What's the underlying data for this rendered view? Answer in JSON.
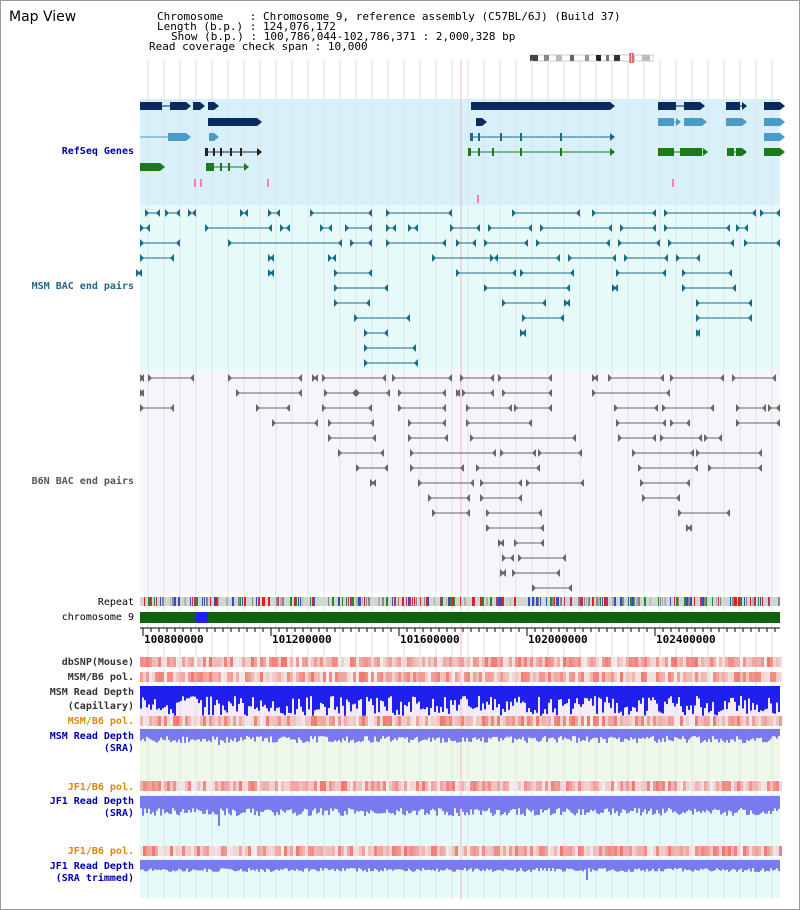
{
  "title": "Map View",
  "info": {
    "chrom_label": "Chromosome",
    "chrom_value": "Chromosome 9, reference assembly (C57BL/6J) (Build 37)",
    "length_label": "Length (b.p.)",
    "length_value": "124,076,172",
    "show_label": "Show (b.p.)",
    "show_value": "100,786,044-102,786,371 : 2,000,328 bp",
    "coverage_label": "Read coverage check span",
    "coverage_value": "10,000"
  },
  "tracks": {
    "refseq": "RefSeq Genes",
    "msm_bac": "MSM BAC end pairs",
    "b6n_bac": "B6N BAC end pairs",
    "repeat": "Repeat",
    "chromosome": "chromosome 9",
    "dbsnp": "dbSNP(Mouse)",
    "msm_pol": "MSM/B6 pol.",
    "msm_depth_cap_1": "MSM Read Depth",
    "msm_depth_cap_2": "(Capillary)",
    "msm_pol2": "MSM/B6 pol.",
    "msm_depth_sra_1": "MSM Read Depth",
    "msm_depth_sra_2": "(SRA)",
    "jf1_pol": "JF1/B6 pol.",
    "jf1_depth_sra_1": "JF1 Read Depth",
    "jf1_depth_sra_2": "(SRA)",
    "jf1_pol2": "JF1/B6 pol.",
    "jf1_depth_trim_1": "JF1 Read Depth",
    "jf1_depth_trim_2": "(SRA trimmed)"
  },
  "ruler": {
    "ticks": [
      "100800000",
      "101200000",
      "101600000",
      "102000000",
      "102400000"
    ]
  },
  "colors": {
    "refseq_band": "#d8f0fa",
    "bac_band": "#e6fafa",
    "gene_dark": "#0a2b5e",
    "gene_mid": "#4a9cc4",
    "gene_green": "#1a7a1a",
    "msm_pair": "#1a6a8a",
    "b6n_pair": "#666666",
    "chrom_green": "#106010",
    "depth_blue": "#2020ee",
    "depth_light_blue": "#7a7aee",
    "pol_red": "#ee3333",
    "label_blue": "#0000aa",
    "label_orange": "#dd8800",
    "label_teal": "#226688"
  }
}
